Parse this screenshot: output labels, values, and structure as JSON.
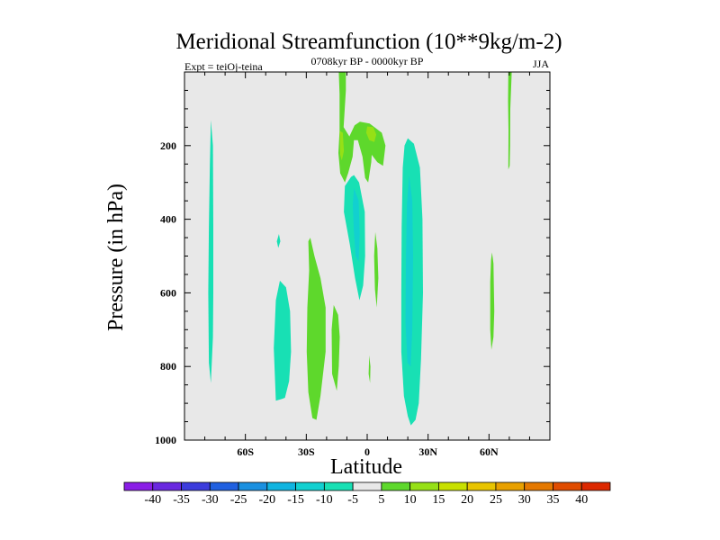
{
  "chart_data": {
    "type": "contour",
    "title": "Meridional Streamfunction (10**9kg/m-2)",
    "subtitle": "0708kyr BP - 0000kyr BP",
    "left_label": "Expt = teiOj-teina",
    "right_label": "JJA",
    "xlabel": "Latitude",
    "ylabel": "Pressure (in hPa)",
    "xlim": [
      -90,
      90
    ],
    "ylim": [
      1000,
      0
    ],
    "x_ticks": [
      {
        "value": -60,
        "label": "60S"
      },
      {
        "value": -30,
        "label": "30S"
      },
      {
        "value": 0,
        "label": "0"
      },
      {
        "value": 30,
        "label": "30N"
      },
      {
        "value": 60,
        "label": "60N"
      }
    ],
    "y_ticks": [
      {
        "value": 200,
        "label": "200"
      },
      {
        "value": 400,
        "label": "400"
      },
      {
        "value": 600,
        "label": "600"
      },
      {
        "value": 800,
        "label": "800"
      },
      {
        "value": 1000,
        "label": "1000"
      }
    ],
    "background_color": "#e8e8e8",
    "colorbar": {
      "levels": [
        "-40",
        "-35",
        "-30",
        "-25",
        "-20",
        "-15",
        "-10",
        "-5",
        "5",
        "10",
        "15",
        "20",
        "25",
        "30",
        "35",
        "40"
      ],
      "colors": [
        "#8a1ee6",
        "#6a28e0",
        "#3c3cdc",
        "#2060e0",
        "#1a90e0",
        "#10b4e0",
        "#12d0d0",
        "#18e0b4",
        "#e8e8e8",
        "#5ed82c",
        "#96e016",
        "#c8e000",
        "#e8c400",
        "#e8a000",
        "#e47800",
        "#e04c00",
        "#dc2800"
      ]
    },
    "regions": [
      {
        "name": "sh-high-lat-negative",
        "level": -5,
        "points": [
          [
            -77,
            130
          ],
          [
            -76,
            200
          ],
          [
            -75.8,
            420
          ],
          [
            -75.8,
            600
          ],
          [
            -76,
            720
          ],
          [
            -77,
            845
          ],
          [
            -78,
            790
          ],
          [
            -78.3,
            600
          ],
          [
            -78,
            420
          ],
          [
            -77.5,
            250
          ]
        ]
      },
      {
        "name": "sh-midlat-neg-small",
        "level": -5,
        "points": [
          [
            -43.5,
            440
          ],
          [
            -42.8,
            460
          ],
          [
            -43.8,
            478
          ],
          [
            -44.5,
            460
          ]
        ]
      },
      {
        "name": "sh-midlat-negative",
        "level": -5,
        "points": [
          [
            -43,
            567
          ],
          [
            -40,
            585
          ],
          [
            -38,
            650
          ],
          [
            -37.5,
            760
          ],
          [
            -38.5,
            840
          ],
          [
            -40.5,
            885
          ],
          [
            -42,
            888
          ],
          [
            -45,
            893
          ],
          [
            -46,
            750
          ],
          [
            -45,
            620
          ]
        ]
      },
      {
        "name": "sh-subtropic-positive",
        "level": 5,
        "points": [
          [
            -28,
            450
          ],
          [
            -26,
            500
          ],
          [
            -23,
            560
          ],
          [
            -20.5,
            640
          ],
          [
            -20.5,
            760
          ],
          [
            -23,
            880
          ],
          [
            -25,
            945
          ],
          [
            -27,
            940
          ],
          [
            -29,
            870
          ],
          [
            -29.8,
            760
          ],
          [
            -29.5,
            640
          ],
          [
            -28.6,
            540
          ],
          [
            -29,
            460
          ]
        ]
      },
      {
        "name": "sh-subtropic-positive-b",
        "level": 5,
        "points": [
          [
            -16.5,
            633
          ],
          [
            -14.3,
            660
          ],
          [
            -13.5,
            720
          ],
          [
            -14,
            800
          ],
          [
            -15,
            866
          ],
          [
            -17.3,
            820
          ],
          [
            -17.5,
            700
          ]
        ]
      },
      {
        "name": "equator-upper-positive",
        "level": 5,
        "points": [
          [
            -14,
            0
          ],
          [
            -10.5,
            0
          ],
          [
            -10.5,
            50
          ],
          [
            -11.6,
            150
          ],
          [
            -8.8,
            175
          ],
          [
            -6.2,
            145
          ],
          [
            -3.6,
            135
          ],
          [
            1.2,
            140
          ],
          [
            7.2,
            165
          ],
          [
            9,
            200
          ],
          [
            7.8,
            255
          ],
          [
            5,
            245
          ],
          [
            2.2,
            225
          ],
          [
            2,
            245
          ],
          [
            0.5,
            300
          ],
          [
            -1,
            288
          ],
          [
            -2.3,
            230
          ],
          [
            -4.6,
            185
          ],
          [
            -6.5,
            185
          ],
          [
            -7.2,
            230
          ],
          [
            -9.4,
            275
          ],
          [
            -11,
            300
          ],
          [
            -13.3,
            275
          ],
          [
            -14.2,
            220
          ],
          [
            -13.6,
            160
          ],
          [
            -13.6,
            60
          ]
        ]
      },
      {
        "name": "equator-upper-positive-core-a",
        "level": 10,
        "points": [
          [
            -13.5,
            160
          ],
          [
            -12,
            165
          ],
          [
            -11.5,
            215
          ],
          [
            -12.5,
            240
          ],
          [
            -13.3,
            225
          ]
        ]
      },
      {
        "name": "equator-upper-positive-core-b",
        "level": 10,
        "points": [
          [
            0,
            148
          ],
          [
            3,
            150
          ],
          [
            4.5,
            170
          ],
          [
            3.5,
            190
          ],
          [
            1,
            185
          ],
          [
            -0.5,
            165
          ]
        ]
      },
      {
        "name": "equator-negative-cell",
        "level": -5,
        "points": [
          [
            -6.5,
            280
          ],
          [
            -4,
            300
          ],
          [
            -1.2,
            380
          ],
          [
            -1,
            500
          ],
          [
            -2,
            580
          ],
          [
            -3.8,
            620
          ],
          [
            -6,
            560
          ],
          [
            -8.5,
            470
          ],
          [
            -11.5,
            380
          ],
          [
            -11,
            310
          ],
          [
            -8,
            285
          ]
        ]
      },
      {
        "name": "equator-negative-core",
        "level": -10,
        "points": [
          [
            -6.5,
            315
          ],
          [
            -4.2,
            350
          ],
          [
            -3.7,
            440
          ],
          [
            -4.2,
            515
          ],
          [
            -5.7,
            500
          ],
          [
            -6.6,
            430
          ],
          [
            -7.1,
            360
          ]
        ]
      },
      {
        "name": "equator-positive-sliver",
        "level": 5,
        "points": [
          [
            4,
            435
          ],
          [
            5,
            480
          ],
          [
            5.5,
            560
          ],
          [
            4.7,
            640
          ],
          [
            3.8,
            590
          ],
          [
            3.4,
            500
          ]
        ]
      },
      {
        "name": "equator-lower-positive-sliver",
        "level": 5,
        "points": [
          [
            1,
            770
          ],
          [
            1.6,
            800
          ],
          [
            1.4,
            845
          ],
          [
            0.7,
            820
          ]
        ]
      },
      {
        "name": "nh-tropic-negative",
        "level": -5,
        "points": [
          [
            20,
            180
          ],
          [
            23,
            195
          ],
          [
            26,
            260
          ],
          [
            27.2,
            400
          ],
          [
            27.5,
            600
          ],
          [
            26.5,
            780
          ],
          [
            25.4,
            900
          ],
          [
            23.8,
            945
          ],
          [
            21.5,
            960
          ],
          [
            20,
            935
          ],
          [
            18.1,
            880
          ],
          [
            16.8,
            760
          ],
          [
            16.8,
            600
          ],
          [
            17,
            420
          ],
          [
            17.5,
            260
          ],
          [
            18.4,
            200
          ]
        ]
      },
      {
        "name": "nh-tropic-negative-core",
        "level": -10,
        "points": [
          [
            20.6,
            280
          ],
          [
            22.2,
            350
          ],
          [
            22.6,
            500
          ],
          [
            22.2,
            700
          ],
          [
            21.4,
            800
          ],
          [
            19.8,
            790
          ],
          [
            18.9,
            680
          ],
          [
            19.1,
            500
          ],
          [
            19.6,
            360
          ]
        ]
      },
      {
        "name": "nh-midlat-positive",
        "level": 5,
        "points": [
          [
            61.5,
            490
          ],
          [
            62.2,
            520
          ],
          [
            62.6,
            650
          ],
          [
            62.2,
            720
          ],
          [
            61.2,
            755
          ],
          [
            60.6,
            700
          ],
          [
            60.6,
            570
          ],
          [
            61,
            510
          ]
        ]
      },
      {
        "name": "nh-high-lat-positive",
        "level": 5,
        "points": [
          [
            69.5,
            0
          ],
          [
            71.2,
            0
          ],
          [
            70.5,
            100
          ],
          [
            70.4,
            200
          ],
          [
            70.2,
            255
          ],
          [
            69.5,
            265
          ],
          [
            69.6,
            160
          ],
          [
            69.4,
            80
          ]
        ]
      }
    ]
  }
}
